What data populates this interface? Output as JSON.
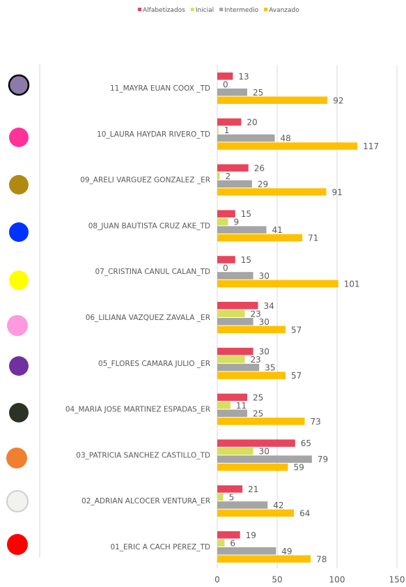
{
  "chart_data": {
    "type": "bar",
    "orientation": "horizontal",
    "categories": [
      "11_MAYRA EUAN COOX _TD",
      "10_LAURA HAYDAR RIVERO_TD",
      "09_ARELI VARGUEZ GONZALEZ _ER",
      "08_JUAN BAUTISTA CRUZ AKE_TD",
      "07_CRISTINA CANUL CALAN_TD",
      "06_LILIANA VAZQUEZ ZAVALA _ER",
      "05_FLORES CAMARA JULIO _ER",
      "04_MARIA JOSE MARTINEZ ESPADAS_ER",
      "03_PATRICIA SANCHEZ CASTILLO_TD",
      "02_ADRIAN ALCOCER VENTURA_ER",
      "01_ERIC A CACH PEREZ_TD"
    ],
    "series": [
      {
        "name": "Alfabetizados",
        "color": "#e8455c",
        "values": [
          13,
          20,
          26,
          15,
          15,
          34,
          30,
          25,
          65,
          21,
          19
        ]
      },
      {
        "name": "Inicial",
        "color": "#d6df5e",
        "values": [
          0,
          1,
          2,
          9,
          0,
          23,
          23,
          11,
          30,
          5,
          6
        ]
      },
      {
        "name": "Intermedio",
        "color": "#a5a5a5",
        "values": [
          25,
          48,
          29,
          41,
          30,
          30,
          35,
          25,
          79,
          42,
          49
        ]
      },
      {
        "name": "Avanzado",
        "color": "#ffc000",
        "values": [
          92,
          117,
          91,
          71,
          101,
          57,
          57,
          73,
          59,
          64,
          78
        ]
      }
    ],
    "xlim": [
      0,
      150
    ],
    "xticks": [
      0,
      50,
      100,
      150
    ],
    "grid": true,
    "legend": "top"
  }
}
